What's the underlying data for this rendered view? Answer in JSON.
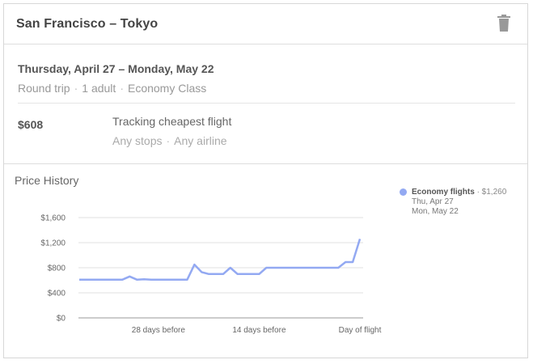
{
  "header": {
    "route": "San Francisco – Tokyo",
    "delete_icon": "trash-icon"
  },
  "trip": {
    "dates": "Thursday, April 27 – Monday, May 22",
    "type": "Round trip",
    "passengers": "1 adult",
    "cabin": "Economy Class",
    "separator": "·"
  },
  "tracking": {
    "price": "$608",
    "title": "Tracking cheapest flight",
    "stops": "Any stops",
    "airline": "Any airline"
  },
  "history": {
    "title": "Price History",
    "legend": {
      "name": "Economy flights",
      "price": "· $1,260",
      "depart": "Thu, Apr 27",
      "return": "Mon, May 22"
    }
  },
  "colors": {
    "series": "#93a9f2"
  },
  "chart_data": {
    "type": "line",
    "series": [
      {
        "name": "Economy flights",
        "x": [
          39,
          38,
          37,
          36,
          35,
          34,
          33,
          32,
          31,
          30,
          29,
          28,
          27,
          26,
          25,
          24,
          23,
          22,
          21,
          20,
          19,
          18,
          17,
          16,
          15,
          14,
          13,
          12,
          11,
          10,
          9,
          8,
          7,
          6,
          5,
          4,
          3,
          2,
          1,
          0
        ],
        "values": [
          610,
          610,
          610,
          610,
          610,
          610,
          610,
          660,
          610,
          615,
          610,
          610,
          610,
          610,
          610,
          610,
          850,
          730,
          700,
          700,
          700,
          800,
          700,
          700,
          700,
          700,
          800,
          800,
          800,
          800,
          800,
          800,
          800,
          800,
          800,
          800,
          800,
          890,
          890,
          1260
        ]
      }
    ],
    "x_tick_values": [
      28,
      14,
      0
    ],
    "x_tick_labels": [
      "28 days before",
      "14 days before",
      "Day of flight"
    ],
    "y_ticks": [
      "$1,600",
      "$1,200",
      "$800",
      "$400",
      "$0"
    ],
    "y_tick_values": [
      1600,
      1200,
      800,
      400,
      0
    ],
    "ylim": [
      0,
      1600
    ],
    "xlim": [
      39,
      0
    ],
    "grid": true,
    "legend_position": "right"
  }
}
